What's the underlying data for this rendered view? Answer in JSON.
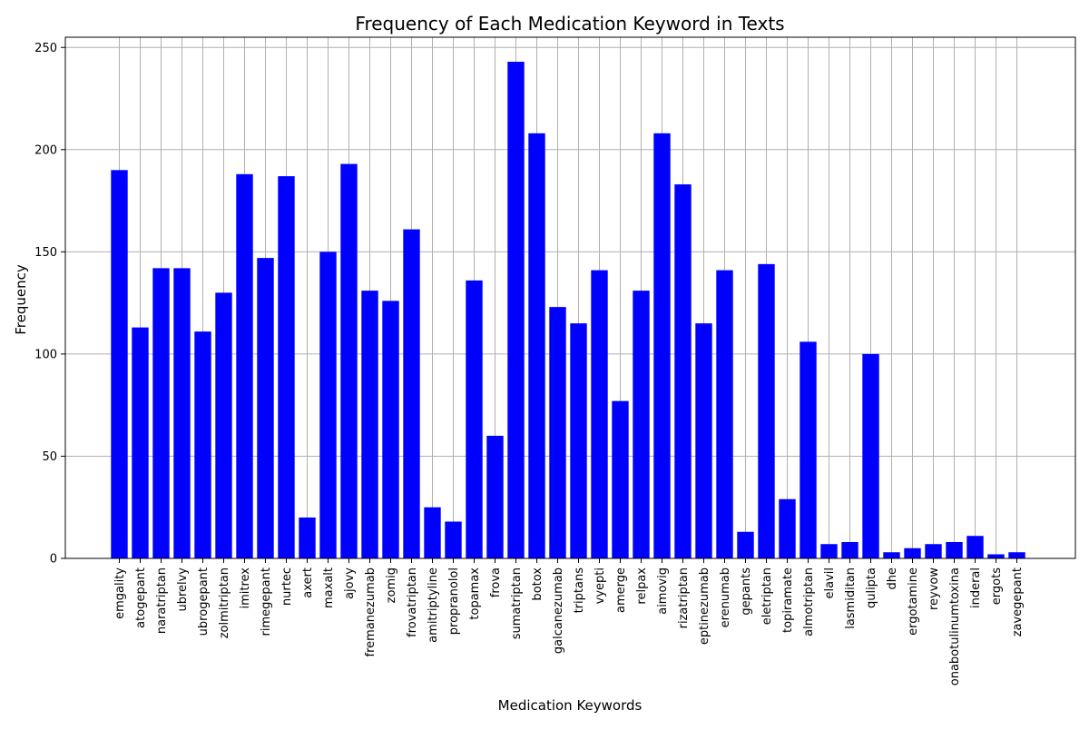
{
  "chart_data": {
    "type": "bar",
    "title": "Frequency of Each Medication Keyword in Texts",
    "xlabel": "Medication Keywords",
    "ylabel": "Frequency",
    "ylim": [
      0,
      255
    ],
    "yticks": [
      0,
      50,
      100,
      150,
      200,
      250
    ],
    "grid": true,
    "bar_color": "#0000ff",
    "categories": [
      "emgality",
      "atogepant",
      "naratriptan",
      "ubrelvy",
      "ubrogepant",
      "zolmitriptan",
      "imitrex",
      "rimegepant",
      "nurtec",
      "axert",
      "maxalt",
      "ajovy",
      "fremanezumab",
      "zomig",
      "frovatriptan",
      "amitriptyline",
      "propranolol",
      "topamax",
      "frova",
      "sumatriptan",
      "botox",
      "galcanezumab",
      "triptans",
      "vyepti",
      "amerge",
      "relpax",
      "aimovig",
      "rizatriptan",
      "eptinezumab",
      "erenumab",
      "gepants",
      "eletriptan",
      "topiramate",
      "almotriptan",
      "elavil",
      "lasmiditan",
      "qulipta",
      "dhe",
      "ergotamine",
      "reyvow",
      "onabotulinumtoxina",
      "inderal",
      "ergots",
      "zavegepant"
    ],
    "values": [
      190,
      113,
      142,
      142,
      111,
      130,
      188,
      147,
      187,
      20,
      150,
      193,
      131,
      126,
      161,
      25,
      18,
      136,
      60,
      243,
      208,
      123,
      115,
      141,
      77,
      131,
      208,
      183,
      115,
      141,
      13,
      144,
      29,
      106,
      7,
      8,
      100,
      3,
      5,
      7,
      8,
      11,
      2,
      3
    ]
  }
}
